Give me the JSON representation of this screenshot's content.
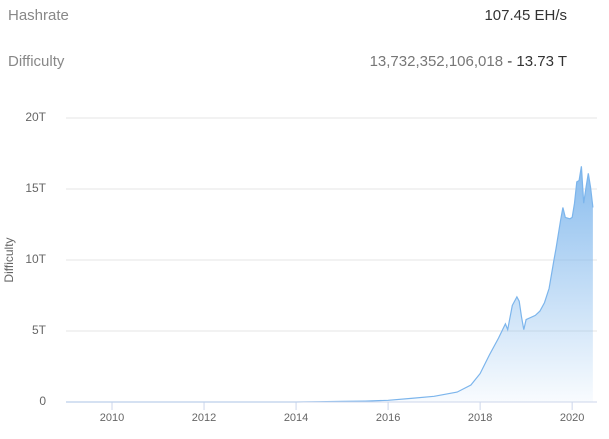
{
  "stats": [
    {
      "label": "Hashrate",
      "value": "107.45 EH/s"
    },
    {
      "label": "Difficulty",
      "value": "13,732,352,106,018",
      "separator": "-",
      "short": "13.73 T"
    }
  ],
  "chart_data": {
    "type": "area",
    "y_label": "Difficulty",
    "x": [
      2009,
      2010,
      2011,
      2012,
      2013,
      2014,
      2014.5,
      2015,
      2015.5,
      2016,
      2016.5,
      2017,
      2017.5,
      2017.8,
      2018,
      2018.2,
      2018.4,
      2018.55,
      2018.6,
      2018.7,
      2018.8,
      2018.85,
      2018.9,
      2018.95,
      2019,
      2019.2,
      2019.3,
      2019.4,
      2019.5,
      2019.6,
      2019.65,
      2019.75,
      2019.8,
      2019.85,
      2019.95,
      2020,
      2020.05,
      2020.1,
      2020.15,
      2020.2,
      2020.25,
      2020.3,
      2020.35,
      2020.4,
      2020.45
    ],
    "series": [
      {
        "name": "Difficulty",
        "color": "#7cb5ec",
        "values": [
          0,
          0,
          0,
          0,
          0.001,
          0.003,
          0.02,
          0.04,
          0.06,
          0.12,
          0.25,
          0.4,
          0.7,
          1.2,
          2.0,
          3.3,
          4.5,
          5.5,
          5.1,
          6.8,
          7.4,
          7.1,
          6.0,
          5.1,
          5.8,
          6.1,
          6.4,
          7.0,
          8.0,
          9.9,
          10.8,
          12.8,
          13.7,
          13.0,
          12.9,
          13.0,
          14.0,
          15.5,
          15.6,
          16.6,
          14.0,
          15.1,
          16.1,
          15.1,
          13.7
        ]
      }
    ],
    "xlim": [
      2009,
      2020.54
    ],
    "xticks": [
      2010,
      2012,
      2014,
      2016,
      2018,
      2020
    ],
    "ylim": [
      0,
      20
    ],
    "yticks": [
      0,
      {
        "value": 5,
        "label": "5T"
      },
      {
        "value": 10,
        "label": "10T"
      },
      {
        "value": 15,
        "label": "15T"
      },
      {
        "value": 20,
        "label": "20T"
      }
    ],
    "grid": true
  }
}
